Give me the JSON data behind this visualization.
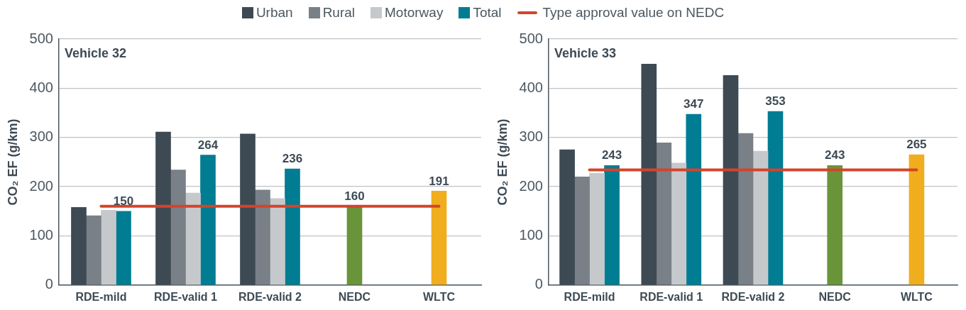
{
  "chart_data": [
    {
      "type": "bar",
      "title": "Vehicle 32",
      "ylabel": "CO₂ EF (g/km)",
      "categories": [
        "RDE-mild",
        "RDE-valid 1",
        "RDE-valid 2",
        "NEDC",
        "WLTC"
      ],
      "ylim": [
        0,
        500
      ],
      "yticks": [
        0,
        100,
        200,
        300,
        400,
        500
      ],
      "grid": "y",
      "legend": "top",
      "series": [
        {
          "name": "Urban",
          "color": "#3d4a54",
          "values": [
            158,
            311,
            307,
            null,
            null
          ]
        },
        {
          "name": "Rural",
          "color": "#7a8087",
          "values": [
            141,
            234,
            193,
            null,
            null
          ]
        },
        {
          "name": "Motorway",
          "color": "#c6c9cb",
          "values": [
            152,
            187,
            176,
            null,
            null
          ]
        },
        {
          "name": "Total",
          "color": "#007d93",
          "values": [
            150,
            264,
            236,
            null,
            null
          ],
          "value_labels": [
            "150",
            "264",
            "236",
            null,
            null
          ]
        },
        {
          "colors": [
            "#6a9439",
            "#6a9439",
            "#6a9439",
            "#6a9439",
            "#f0ad1e"
          ],
          "values": [
            null,
            null,
            null,
            160,
            191
          ],
          "value_labels": [
            null,
            null,
            null,
            "160",
            "191"
          ]
        }
      ],
      "ref_lines": [
        {
          "axis": "y",
          "value": 160,
          "label": "Type approval value on NEDC",
          "color": "#d4442a"
        }
      ]
    },
    {
      "type": "bar",
      "title": "Vehicle 33",
      "ylabel": "CO₂ EF (g/km)",
      "categories": [
        "RDE-mild",
        "RDE-valid 1",
        "RDE-valid 2",
        "NEDC",
        "WLTC"
      ],
      "ylim": [
        0,
        500
      ],
      "yticks": [
        0,
        100,
        200,
        300,
        400,
        500
      ],
      "grid": "y",
      "series": [
        {
          "color": "#3d4a54",
          "values": [
            275,
            449,
            426,
            null,
            null
          ]
        },
        {
          "color": "#7a8087",
          "values": [
            220,
            289,
            308,
            null,
            null
          ]
        },
        {
          "color": "#c6c9cb",
          "values": [
            227,
            248,
            272,
            null,
            null
          ]
        },
        {
          "color": "#007d93",
          "values": [
            243,
            347,
            353,
            null,
            null
          ],
          "value_labels": [
            "243",
            "347",
            "353",
            null,
            null
          ]
        },
        {
          "colors": [
            "#6a9439",
            "#6a9439",
            "#6a9439",
            "#6a9439",
            "#f0ad1e"
          ],
          "values": [
            null,
            null,
            null,
            243,
            265
          ],
          "value_labels": [
            null,
            null,
            null,
            "243",
            "265"
          ]
        }
      ],
      "ref_lines": [
        {
          "axis": "y",
          "value": 234,
          "color": "#d4442a"
        }
      ]
    }
  ]
}
